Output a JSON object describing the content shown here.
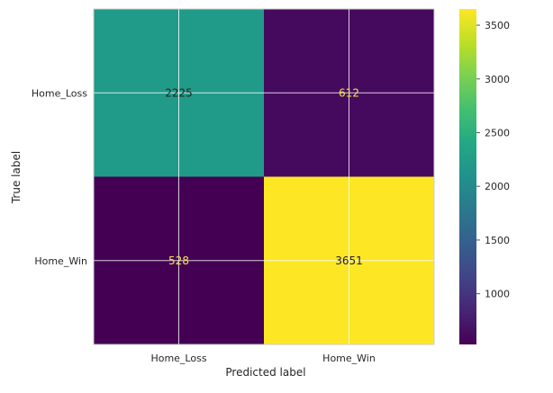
{
  "chart_data": {
    "type": "heatmap",
    "title": "",
    "xlabel": "Predicted label",
    "ylabel": "True label",
    "x_categories": [
      "Home_Loss",
      "Home_Win"
    ],
    "y_categories": [
      "Home_Loss",
      "Home_Win"
    ],
    "matrix": [
      [
        2225,
        612
      ],
      [
        528,
        3651
      ]
    ],
    "cell_labels": [
      [
        "2225",
        "612"
      ],
      [
        "528",
        "3651"
      ]
    ],
    "colormap": "viridis",
    "colorbar": {
      "range": [
        528,
        3651
      ],
      "ticks": [
        1000,
        1500,
        2000,
        2500,
        3000,
        3500
      ],
      "tick_labels": [
        "1000",
        "1500",
        "2000",
        "2500",
        "3000",
        "3500"
      ]
    },
    "grid": true
  },
  "colors": {
    "grid": "#ffffff",
    "frame": "#cccccc",
    "text_on_dark": "#f5e64a",
    "text_on_light": "#222222"
  }
}
